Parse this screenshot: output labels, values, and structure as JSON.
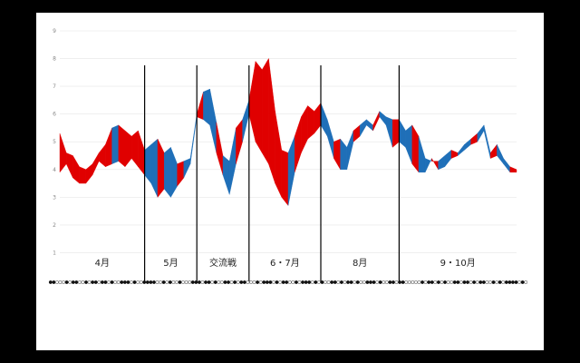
{
  "chart_data": {
    "type": "area",
    "title": "",
    "xlabel": "",
    "ylabel": "",
    "ylim": [
      0,
      9
    ],
    "yticks": [
      1,
      2,
      3,
      4,
      5,
      6,
      7,
      8,
      9
    ],
    "x_range": [
      0,
      140
    ],
    "grid": true,
    "colors": {
      "above": "#e00000",
      "below": "#1f6fb8",
      "divider": "#000000"
    },
    "periods": [
      {
        "label": "4月",
        "start": 0,
        "end": 26
      },
      {
        "label": "5月",
        "start": 26,
        "end": 42
      },
      {
        "label": "交流戦",
        "start": 42,
        "end": 58
      },
      {
        "label": "6・7月",
        "start": 58,
        "end": 80
      },
      {
        "label": "8月",
        "start": 80,
        "end": 104
      },
      {
        "label": "9・10月",
        "start": 104,
        "end": 140
      }
    ],
    "series": [
      {
        "role": "upper",
        "x": [
          0,
          2,
          4,
          6,
          8,
          10,
          12,
          14,
          16,
          18,
          20,
          22,
          24,
          26,
          28,
          30,
          32,
          34,
          36,
          38,
          40,
          42,
          44,
          46,
          48,
          50,
          52,
          54,
          56,
          58,
          60,
          62,
          64,
          66,
          68,
          70,
          72,
          74,
          76,
          78,
          80,
          82,
          84,
          86,
          88,
          90,
          92,
          94,
          96,
          98,
          100,
          102,
          104,
          106,
          108,
          110,
          112,
          114,
          116,
          118,
          120,
          122,
          124,
          126,
          128,
          130,
          132,
          134,
          136,
          138,
          140
        ],
        "values": [
          5.3,
          4.6,
          4.5,
          4.1,
          4.0,
          4.2,
          4.6,
          4.9,
          5.5,
          5.6,
          5.4,
          5.2,
          5.4,
          4.7,
          4.9,
          5.1,
          4.6,
          4.8,
          4.2,
          4.3,
          4.4,
          6.0,
          6.8,
          6.9,
          5.7,
          4.5,
          4.3,
          5.5,
          5.8,
          6.5,
          7.9,
          7.6,
          8.0,
          6.1,
          4.7,
          4.6,
          5.2,
          5.9,
          6.3,
          6.1,
          6.4,
          5.8,
          5.0,
          5.1,
          4.8,
          5.4,
          5.6,
          5.8,
          5.6,
          6.1,
          5.9,
          5.8,
          5.8,
          5.4,
          5.6,
          5.2,
          4.4,
          4.3,
          4.3,
          4.5,
          4.7,
          4.6,
          4.9,
          5.1,
          5.3,
          5.6,
          4.6,
          4.9,
          4.4,
          4.1,
          4.0
        ]
      },
      {
        "role": "lower",
        "x": [
          0,
          2,
          4,
          6,
          8,
          10,
          12,
          14,
          16,
          18,
          20,
          22,
          24,
          26,
          28,
          30,
          32,
          34,
          36,
          38,
          40,
          42,
          44,
          46,
          48,
          50,
          52,
          54,
          56,
          58,
          60,
          62,
          64,
          66,
          68,
          70,
          72,
          74,
          76,
          78,
          80,
          82,
          84,
          86,
          88,
          90,
          92,
          94,
          96,
          98,
          100,
          102,
          104,
          106,
          108,
          110,
          112,
          114,
          116,
          118,
          120,
          122,
          124,
          126,
          128,
          130,
          132,
          134,
          136,
          138,
          140
        ],
        "values": [
          3.9,
          4.2,
          3.7,
          3.5,
          3.5,
          3.8,
          4.3,
          4.1,
          4.2,
          4.3,
          4.1,
          4.4,
          4.1,
          3.8,
          3.5,
          3.0,
          3.3,
          3.0,
          3.4,
          3.7,
          4.2,
          5.9,
          5.8,
          5.6,
          4.6,
          3.8,
          3.1,
          4.2,
          5.0,
          6.0,
          5.0,
          4.6,
          4.2,
          3.5,
          3.0,
          2.7,
          3.9,
          4.6,
          5.1,
          5.3,
          5.6,
          5.2,
          4.4,
          4.0,
          4.0,
          5.0,
          5.2,
          5.6,
          5.4,
          5.9,
          5.6,
          4.8,
          5.0,
          4.8,
          4.2,
          3.9,
          3.9,
          4.4,
          4.0,
          4.1,
          4.4,
          4.5,
          4.7,
          4.9,
          5.0,
          5.4,
          4.4,
          4.5,
          4.2,
          3.9,
          3.9
        ]
      }
    ],
    "game_marks": "LLWWWLWLLWWLWLLWLLWLWWLLLWLWWLLLLWWLWLWWLWWWLLLWLLWLWWLLWLWLLWWWLWLLLWLWLLWWLWLLLWLWLWWLLWLWLLWLWWLLLWLWWLLWLLWWWWWLWLLWLWLWWLLWLLWLWLLWWLWLWLLLLWLW"
  }
}
